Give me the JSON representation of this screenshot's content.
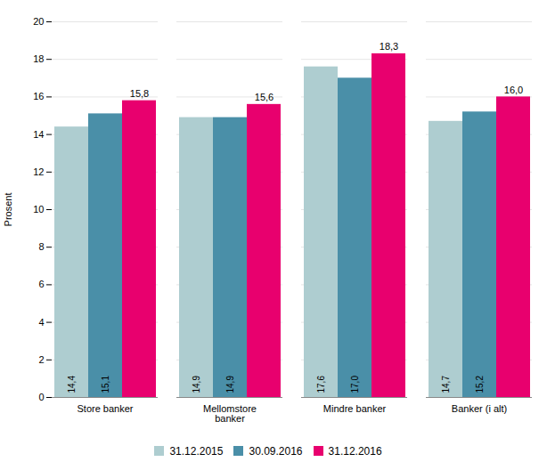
{
  "chart_data": {
    "type": "bar",
    "categories": [
      "Store banker",
      "Mellomstore\nbanker",
      "Mindre banker",
      "Banker (i alt)"
    ],
    "series": [
      {
        "name": "31.12.2015",
        "color": "#aecdd0",
        "values": [
          14.4,
          14.9,
          17.6,
          14.7
        ],
        "value_labels": [
          "14,4",
          "14,9",
          "17,6",
          "14,7"
        ]
      },
      {
        "name": "30.09.2016",
        "color": "#4a8fa8",
        "values": [
          15.1,
          14.9,
          17.0,
          15.2
        ],
        "value_labels": [
          "15,1",
          "14,9",
          "17,0",
          "15,2"
        ]
      },
      {
        "name": "31.12.2016",
        "color": "#e8006e",
        "values": [
          15.8,
          15.6,
          18.3,
          16.0
        ],
        "value_labels": [
          "15,8",
          "15,6",
          "18,3",
          "16,0"
        ]
      }
    ],
    "ylabel": "Prosent",
    "ylim": [
      0,
      20
    ],
    "yticks": [
      0,
      2,
      4,
      6,
      8,
      10,
      12,
      14,
      16,
      18,
      20
    ],
    "grid": true,
    "legend": "bottom",
    "data_labels": true
  }
}
